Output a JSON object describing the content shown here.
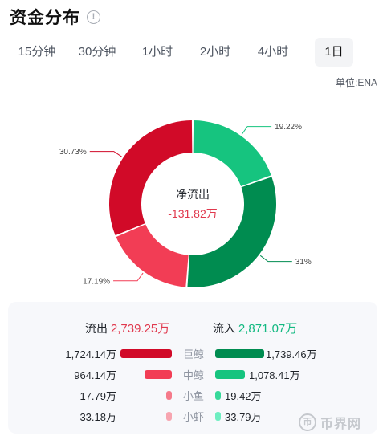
{
  "header": {
    "title": "资金分布",
    "info_icon": "!"
  },
  "tabs": [
    {
      "label": "15分钟",
      "active": false
    },
    {
      "label": "30分钟",
      "active": false
    },
    {
      "label": "1小时",
      "active": false
    },
    {
      "label": "2小时",
      "active": false
    },
    {
      "label": "4小时",
      "active": false
    },
    {
      "label": "1日",
      "active": true
    }
  ],
  "unit": "单位:ENA",
  "chart_data": {
    "type": "pie",
    "donut": true,
    "slices": [
      {
        "label": "19.22%",
        "value": 19.22,
        "color": "#16c47f"
      },
      {
        "label": "31%",
        "value": 31.0,
        "color": "#008c50"
      },
      {
        "label": "17.19%",
        "value": 17.19,
        "color": "#f23d55"
      },
      {
        "label": "30.73%",
        "value": 30.73,
        "color": "#d10a28"
      }
    ],
    "center_label": "净流出",
    "center_value": "-131.82万"
  },
  "summary": {
    "out_label": "流出",
    "out_value": "2,739.25万",
    "in_label": "流入",
    "in_value": "2,871.07万"
  },
  "colors": {
    "out_main": "#d10a28",
    "out_light": "#f23d55",
    "out_small": "#f57a8a",
    "out_tiny": "#f7a5b0",
    "in_main": "#008c50",
    "in_light": "#16c47f",
    "in_small": "#37d99a",
    "in_tiny": "#6eeec1"
  },
  "breakdown": [
    {
      "category": "巨鲸",
      "out": "1,724.14万",
      "in": "1,739.46万",
      "out_amount": 1724.14,
      "in_amount": 1739.46
    },
    {
      "category": "中鲸",
      "out": "964.14万",
      "in": "1,078.41万",
      "out_amount": 964.14,
      "in_amount": 1078.41
    },
    {
      "category": "小鱼",
      "out": "17.79万",
      "in": "19.42万",
      "out_amount": 17.79,
      "in_amount": 19.42
    },
    {
      "category": "小虾",
      "out": "33.18万",
      "in": "33.79万",
      "out_amount": 33.18,
      "in_amount": 33.79
    }
  ],
  "watermark": {
    "icon": "币",
    "text": "币界网"
  }
}
